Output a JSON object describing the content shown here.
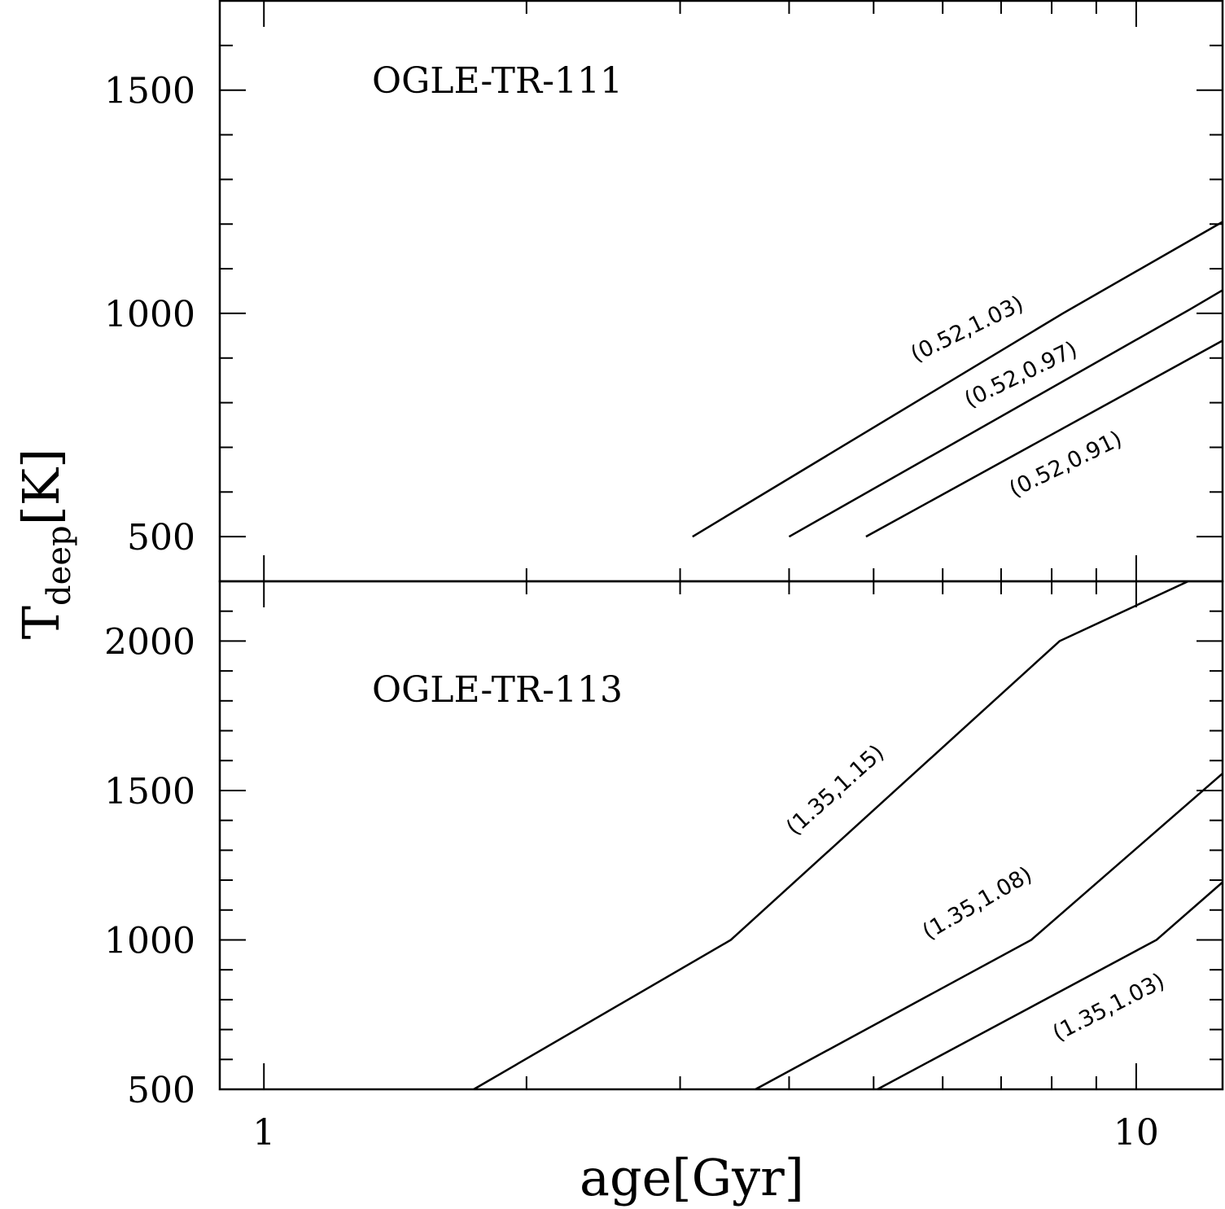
{
  "chart_data": [
    {
      "type": "line",
      "title": "OGLE-TR-111",
      "xlim": [
        0.89,
        12.56
      ],
      "xticks": [
        1,
        10
      ],
      "xminor": [
        2,
        3,
        4,
        5,
        6,
        7,
        8,
        9
      ],
      "xscale": "log",
      "ylim": [
        400,
        1700
      ],
      "yticks": [
        500,
        1000,
        1500
      ],
      "yminor": [
        600,
        700,
        800,
        900,
        1100,
        1200,
        1300,
        1400,
        1600
      ],
      "series": [
        {
          "name": "(0.52,1.03)",
          "color": "#000000",
          "x": [
            3.1,
            8.24,
            12.56
          ],
          "values": [
            500,
            1000,
            1205
          ]
        },
        {
          "name": "(0.52,0.97)",
          "color": "#000000",
          "x": [
            4.0,
            11.5,
            12.56
          ],
          "values": [
            500,
            1008,
            1052
          ]
        },
        {
          "name": "(0.52,0.91)",
          "color": "#000000",
          "x": [
            4.9,
            12.56
          ],
          "values": [
            500,
            939
          ]
        }
      ]
    },
    {
      "type": "line",
      "title": "OGLE-TR-113",
      "xlim": [
        0.89,
        12.56
      ],
      "xticks": [
        1,
        10
      ],
      "xminor": [
        2,
        3,
        4,
        5,
        6,
        7,
        8,
        9
      ],
      "xscale": "log",
      "xlabel": "age[Gyr]",
      "ylabel": [
        "T",
        "deep",
        "[K]"
      ],
      "ylim": [
        500,
        2200
      ],
      "yticks": [
        500,
        1000,
        1500,
        2000
      ],
      "yminor": [
        600,
        700,
        800,
        900,
        1100,
        1200,
        1300,
        1400,
        1600,
        1700,
        1800,
        1900,
        2100
      ],
      "series": [
        {
          "name": "(1.35,1.15)",
          "color": "#000000",
          "x": [
            1.74,
            3.43,
            8.17,
            11.47
          ],
          "values": [
            500,
            1000,
            2000,
            2200
          ]
        },
        {
          "name": "(1.35,1.08)",
          "color": "#000000",
          "x": [
            3.66,
            7.58,
            12.56
          ],
          "values": [
            500,
            1000,
            1557
          ]
        },
        {
          "name": "(1.35,1.03)",
          "color": "#000000",
          "x": [
            5.05,
            10.55,
            12.56
          ],
          "values": [
            500,
            1000,
            1193
          ]
        }
      ]
    }
  ]
}
